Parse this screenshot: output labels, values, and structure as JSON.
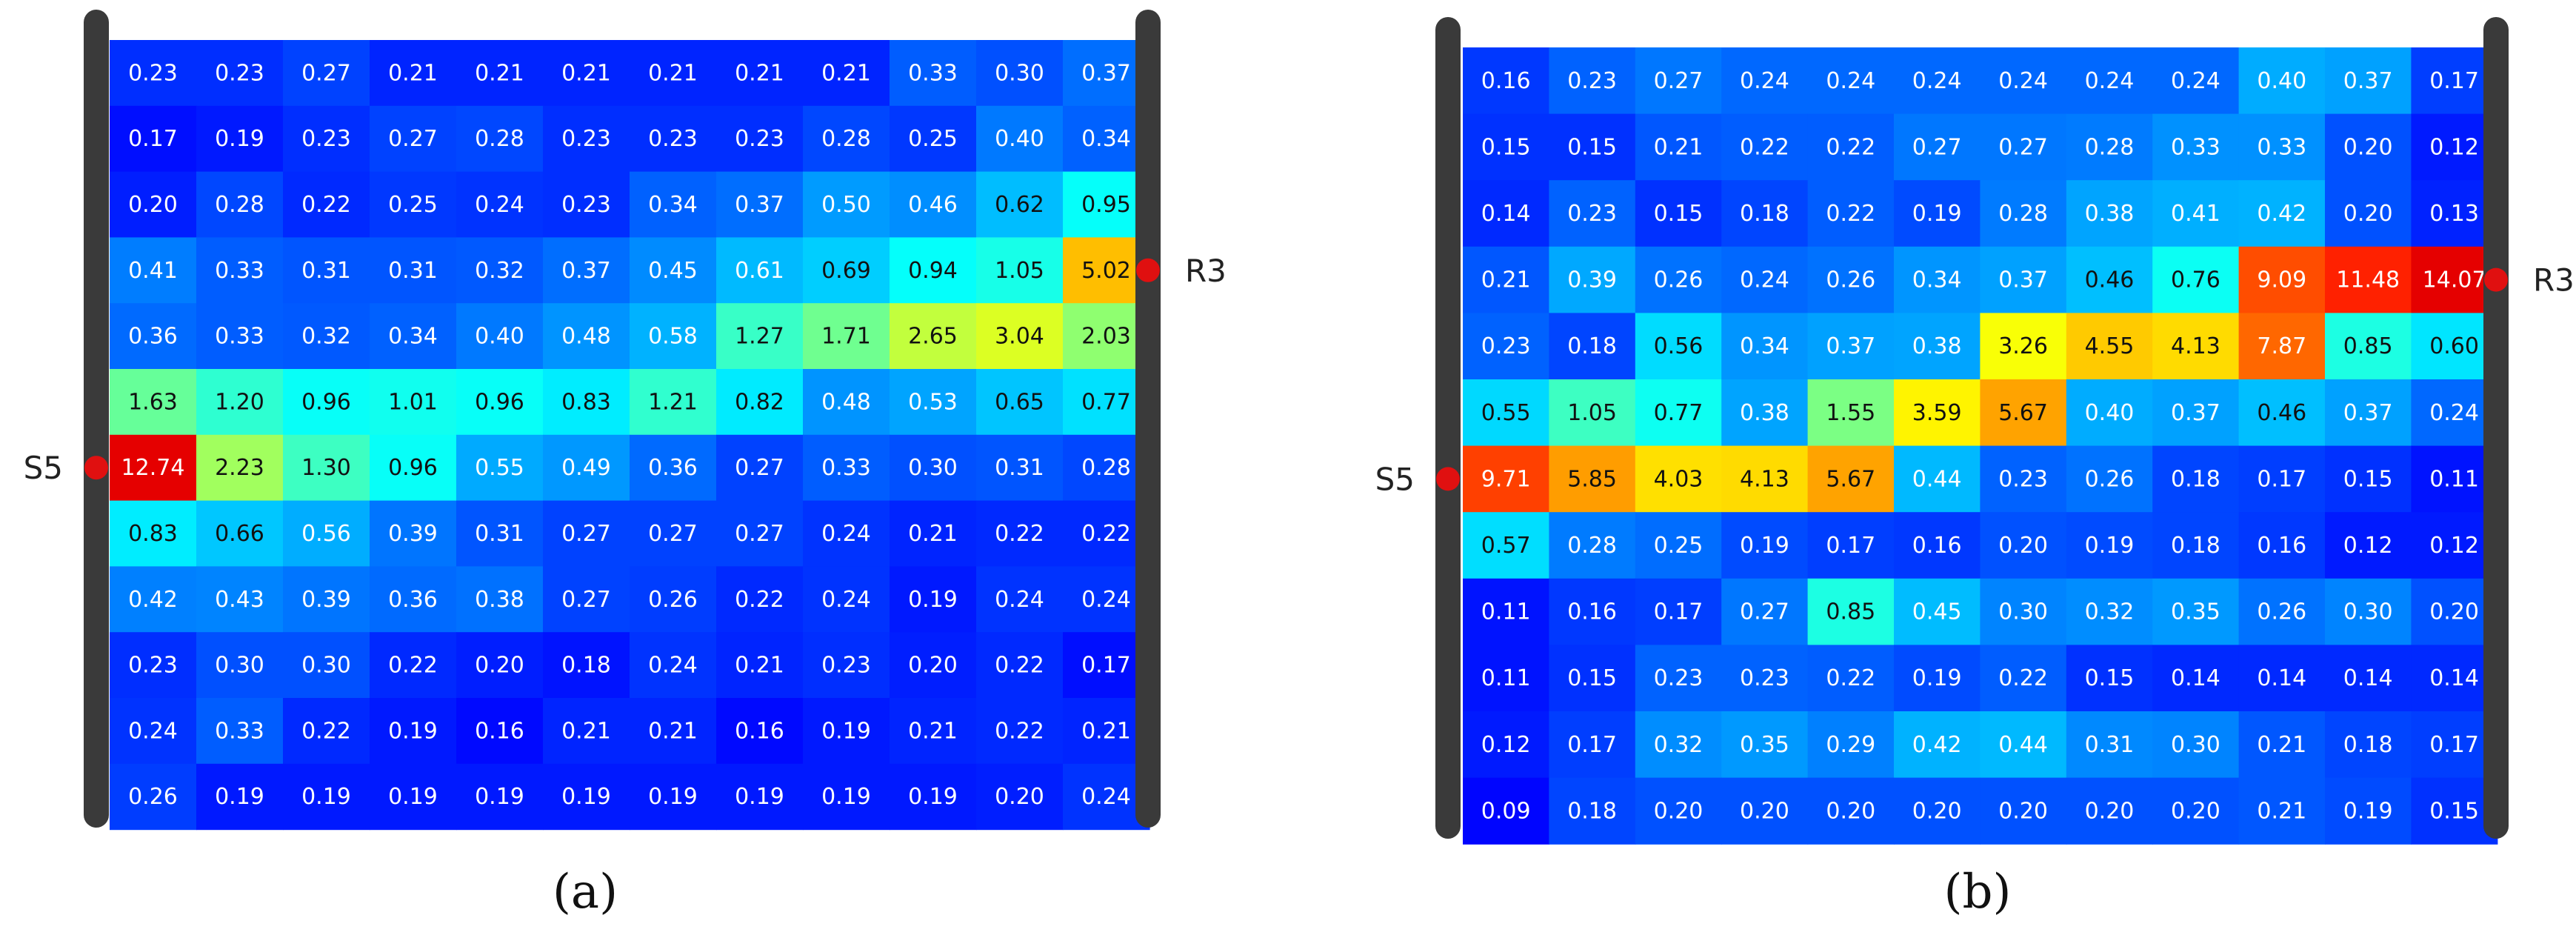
{
  "chart_data": [
    {
      "type": "heatmap",
      "panel_label": "(a)",
      "left_label": "S5",
      "right_label": "R3",
      "left_marker_row": 6,
      "right_marker_row": 3,
      "colorscale": "jet",
      "vmin": 0.15,
      "vmax": 12.74,
      "values": [
        [
          "0.23",
          "0.23",
          "0.27",
          "0.21",
          "0.21",
          "0.21",
          "0.21",
          "0.21",
          "0.21",
          "0.33",
          "0.30",
          "0.37"
        ],
        [
          "0.17",
          "0.19",
          "0.23",
          "0.27",
          "0.28",
          "0.23",
          "0.23",
          "0.23",
          "0.28",
          "0.25",
          "0.40",
          "0.34"
        ],
        [
          "0.20",
          "0.28",
          "0.22",
          "0.25",
          "0.24",
          "0.23",
          "0.34",
          "0.37",
          "0.50",
          "0.46",
          "0.62",
          "0.95"
        ],
        [
          "0.41",
          "0.33",
          "0.31",
          "0.31",
          "0.32",
          "0.37",
          "0.45",
          "0.61",
          "0.69",
          "0.94",
          "1.05",
          "5.02"
        ],
        [
          "0.36",
          "0.33",
          "0.32",
          "0.34",
          "0.40",
          "0.48",
          "0.58",
          "1.27",
          "1.71",
          "2.65",
          "3.04",
          "2.03"
        ],
        [
          "1.63",
          "1.20",
          "0.96",
          "1.01",
          "0.96",
          "0.83",
          "1.21",
          "0.82",
          "0.48",
          "0.53",
          "0.65",
          "0.77"
        ],
        [
          "12.74",
          "2.23",
          "1.30",
          "0.96",
          "0.55",
          "0.49",
          "0.36",
          "0.27",
          "0.33",
          "0.30",
          "0.31",
          "0.28"
        ],
        [
          "0.83",
          "0.66",
          "0.56",
          "0.39",
          "0.31",
          "0.27",
          "0.27",
          "0.27",
          "0.24",
          "0.21",
          "0.22",
          "0.22"
        ],
        [
          "0.42",
          "0.43",
          "0.39",
          "0.36",
          "0.38",
          "0.27",
          "0.26",
          "0.22",
          "0.24",
          "0.19",
          "0.24",
          "0.24"
        ],
        [
          "0.23",
          "0.30",
          "0.30",
          "0.22",
          "0.20",
          "0.18",
          "0.24",
          "0.21",
          "0.23",
          "0.20",
          "0.22",
          "0.17"
        ],
        [
          "0.24",
          "0.33",
          "0.22",
          "0.19",
          "0.16",
          "0.21",
          "0.21",
          "0.16",
          "0.19",
          "0.21",
          "0.22",
          "0.21"
        ],
        [
          "0.26",
          "0.19",
          "0.19",
          "0.19",
          "0.19",
          "0.19",
          "0.19",
          "0.19",
          "0.19",
          "0.19",
          "0.20",
          "0.24"
        ]
      ]
    },
    {
      "type": "heatmap",
      "panel_label": "(b)",
      "left_label": "S5",
      "right_label": "R3",
      "left_marker_row": 6,
      "right_marker_row": 3,
      "colorscale": "jet",
      "vmin": 0.09,
      "vmax": 14.07,
      "values": [
        [
          "0.16",
          "0.23",
          "0.27",
          "0.24",
          "0.24",
          "0.24",
          "0.24",
          "0.24",
          "0.24",
          "0.40",
          "0.37",
          "0.17"
        ],
        [
          "0.15",
          "0.15",
          "0.21",
          "0.22",
          "0.22",
          "0.27",
          "0.27",
          "0.28",
          "0.33",
          "0.33",
          "0.20",
          "0.12"
        ],
        [
          "0.14",
          "0.23",
          "0.15",
          "0.18",
          "0.22",
          "0.19",
          "0.28",
          "0.38",
          "0.41",
          "0.42",
          "0.20",
          "0.13"
        ],
        [
          "0.21",
          "0.39",
          "0.26",
          "0.24",
          "0.26",
          "0.34",
          "0.37",
          "0.46",
          "0.76",
          "9.09",
          "11.48",
          "14.07"
        ],
        [
          "0.23",
          "0.18",
          "0.56",
          "0.34",
          "0.37",
          "0.38",
          "3.26",
          "4.55",
          "4.13",
          "7.87",
          "0.85",
          "0.60"
        ],
        [
          "0.55",
          "1.05",
          "0.77",
          "0.38",
          "1.55",
          "3.59",
          "5.67",
          "0.40",
          "0.37",
          "0.46",
          "0.37",
          "0.24"
        ],
        [
          "9.71",
          "5.85",
          "4.03",
          "4.13",
          "5.67",
          "0.44",
          "0.23",
          "0.26",
          "0.18",
          "0.17",
          "0.15",
          "0.11"
        ],
        [
          "0.57",
          "0.28",
          "0.25",
          "0.19",
          "0.17",
          "0.16",
          "0.20",
          "0.19",
          "0.18",
          "0.16",
          "0.12",
          "0.12"
        ],
        [
          "0.11",
          "0.16",
          "0.17",
          "0.27",
          "0.85",
          "0.45",
          "0.30",
          "0.32",
          "0.35",
          "0.26",
          "0.30",
          "0.20"
        ],
        [
          "0.11",
          "0.15",
          "0.23",
          "0.23",
          "0.22",
          "0.19",
          "0.22",
          "0.15",
          "0.14",
          "0.14",
          "0.14",
          "0.14"
        ],
        [
          "0.12",
          "0.17",
          "0.32",
          "0.35",
          "0.29",
          "0.42",
          "0.44",
          "0.31",
          "0.30",
          "0.21",
          "0.18",
          "0.17"
        ],
        [
          "0.09",
          "0.18",
          "0.20",
          "0.20",
          "0.20",
          "0.20",
          "0.20",
          "0.20",
          "0.20",
          "0.21",
          "0.19",
          "0.15"
        ]
      ]
    }
  ]
}
